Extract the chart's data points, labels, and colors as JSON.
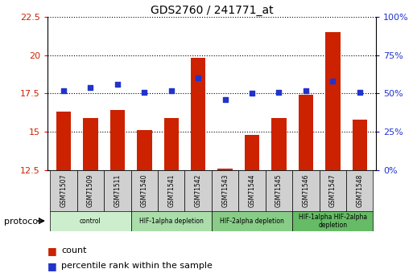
{
  "title": "GDS2760 / 241771_at",
  "samples": [
    "GSM71507",
    "GSM71509",
    "GSM71511",
    "GSM71540",
    "GSM71541",
    "GSM71542",
    "GSM71543",
    "GSM71544",
    "GSM71545",
    "GSM71546",
    "GSM71547",
    "GSM71548"
  ],
  "count_values": [
    16.3,
    15.9,
    16.4,
    15.1,
    15.9,
    19.8,
    12.6,
    14.8,
    15.9,
    17.4,
    21.5,
    15.8
  ],
  "percentile_values": [
    52,
    54,
    56,
    51,
    52,
    60,
    46,
    50,
    51,
    52,
    58,
    51
  ],
  "ylim_left": [
    12.5,
    22.5
  ],
  "ylim_right": [
    0,
    100
  ],
  "yticks_left": [
    12.5,
    15.0,
    17.5,
    20.0,
    22.5
  ],
  "yticks_right": [
    0,
    25,
    50,
    75,
    100
  ],
  "ytick_labels_right": [
    "0%",
    "25%",
    "50%",
    "75%",
    "100%"
  ],
  "bar_color": "#cc2200",
  "dot_color": "#2233cc",
  "protocol_groups": [
    {
      "label": "control",
      "start": 0,
      "end": 2,
      "color": "#cceecc"
    },
    {
      "label": "HIF-1alpha depletion",
      "start": 3,
      "end": 5,
      "color": "#aaddaa"
    },
    {
      "label": "HIF-2alpha depletion",
      "start": 6,
      "end": 8,
      "color": "#88cc88"
    },
    {
      "label": "HIF-1alpha HIF-2alpha\ndepletion",
      "start": 9,
      "end": 11,
      "color": "#66bb66"
    }
  ],
  "legend_red_label": "count",
  "legend_blue_label": "percentile rank within the sample",
  "protocol_label": "protocol"
}
